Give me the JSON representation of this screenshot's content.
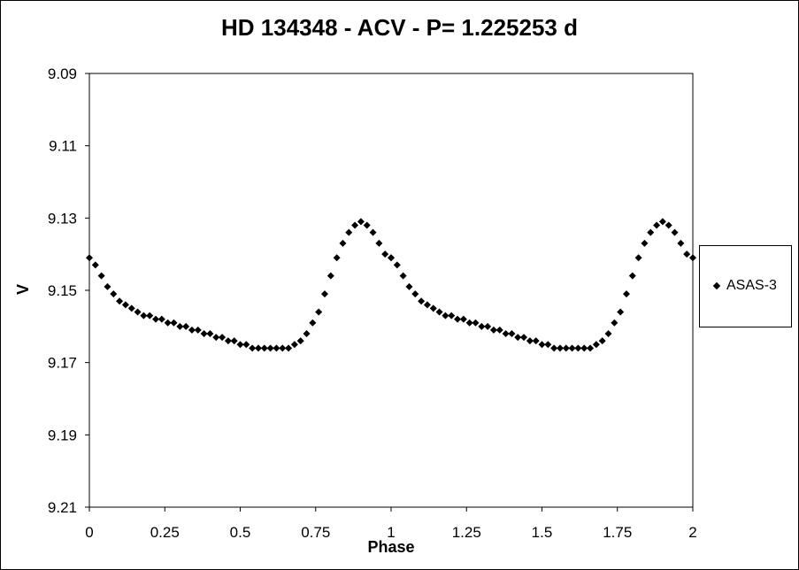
{
  "chart_data": {
    "type": "scatter",
    "title": "HD 134348 - ACV - P= 1.225253 d",
    "xlabel": "Phase",
    "ylabel": "V",
    "xlim": [
      0,
      2
    ],
    "ylim": [
      9.21,
      9.09
    ],
    "y_inverted": true,
    "x_ticks": [
      "0",
      "0.25",
      "0.5",
      "0.75",
      "1",
      "1.25",
      "1.5",
      "1.75",
      "2"
    ],
    "y_ticks": [
      "9.09",
      "9.11",
      "9.13",
      "9.15",
      "9.17",
      "9.19",
      "9.21"
    ],
    "legend_position": "right",
    "grid": false,
    "marker": "diamond",
    "color": "#000000",
    "series": [
      {
        "name": "ASAS-3",
        "phase_folded": true,
        "x": [
          0.0,
          0.02,
          0.04,
          0.06,
          0.08,
          0.1,
          0.12,
          0.14,
          0.16,
          0.18,
          0.2,
          0.22,
          0.24,
          0.26,
          0.28,
          0.3,
          0.32,
          0.34,
          0.36,
          0.38,
          0.4,
          0.42,
          0.44,
          0.46,
          0.48,
          0.5,
          0.52,
          0.54,
          0.56,
          0.58,
          0.6,
          0.62,
          0.64,
          0.66,
          0.68,
          0.7,
          0.72,
          0.74,
          0.76,
          0.78,
          0.8,
          0.82,
          0.84,
          0.86,
          0.88,
          0.9,
          0.92,
          0.94,
          0.96,
          0.98,
          1.0
        ],
        "y": [
          9.141,
          9.143,
          9.146,
          9.149,
          9.151,
          9.153,
          9.154,
          9.155,
          9.156,
          9.157,
          9.157,
          9.158,
          9.158,
          9.159,
          9.159,
          9.16,
          9.16,
          9.161,
          9.161,
          9.162,
          9.162,
          9.163,
          9.163,
          9.164,
          9.164,
          9.165,
          9.165,
          9.166,
          9.166,
          9.166,
          9.166,
          9.166,
          9.166,
          9.166,
          9.165,
          9.164,
          9.162,
          9.159,
          9.156,
          9.151,
          9.146,
          9.141,
          9.137,
          9.134,
          9.132,
          9.131,
          9.132,
          9.134,
          9.137,
          9.14,
          9.141
        ]
      }
    ]
  },
  "legend": {
    "label": "ASAS-3"
  }
}
